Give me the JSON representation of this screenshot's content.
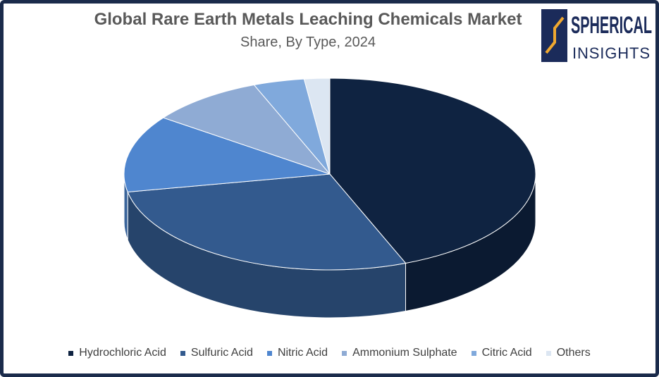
{
  "chart_data": {
    "type": "pie",
    "title": "Global Rare Earth Metals Leaching Chemicals Market",
    "subtitle": "Share, By Type, 2024",
    "categories": [
      "Hydrochloric Acid",
      "Sulfuric Acid",
      "Nitric Acid",
      "Ammonium Sulphate",
      "Citric Acid",
      "Others"
    ],
    "values": [
      44,
      28,
      13,
      9,
      4,
      2
    ],
    "colors": [
      "#0f2341",
      "#335a8e",
      "#4f86cf",
      "#8fabd4",
      "#80a9dc",
      "#dce6f2"
    ],
    "legend": "bottom"
  },
  "logo": {
    "line1": "SPHERICAL",
    "line2": "INSIGHTS"
  }
}
